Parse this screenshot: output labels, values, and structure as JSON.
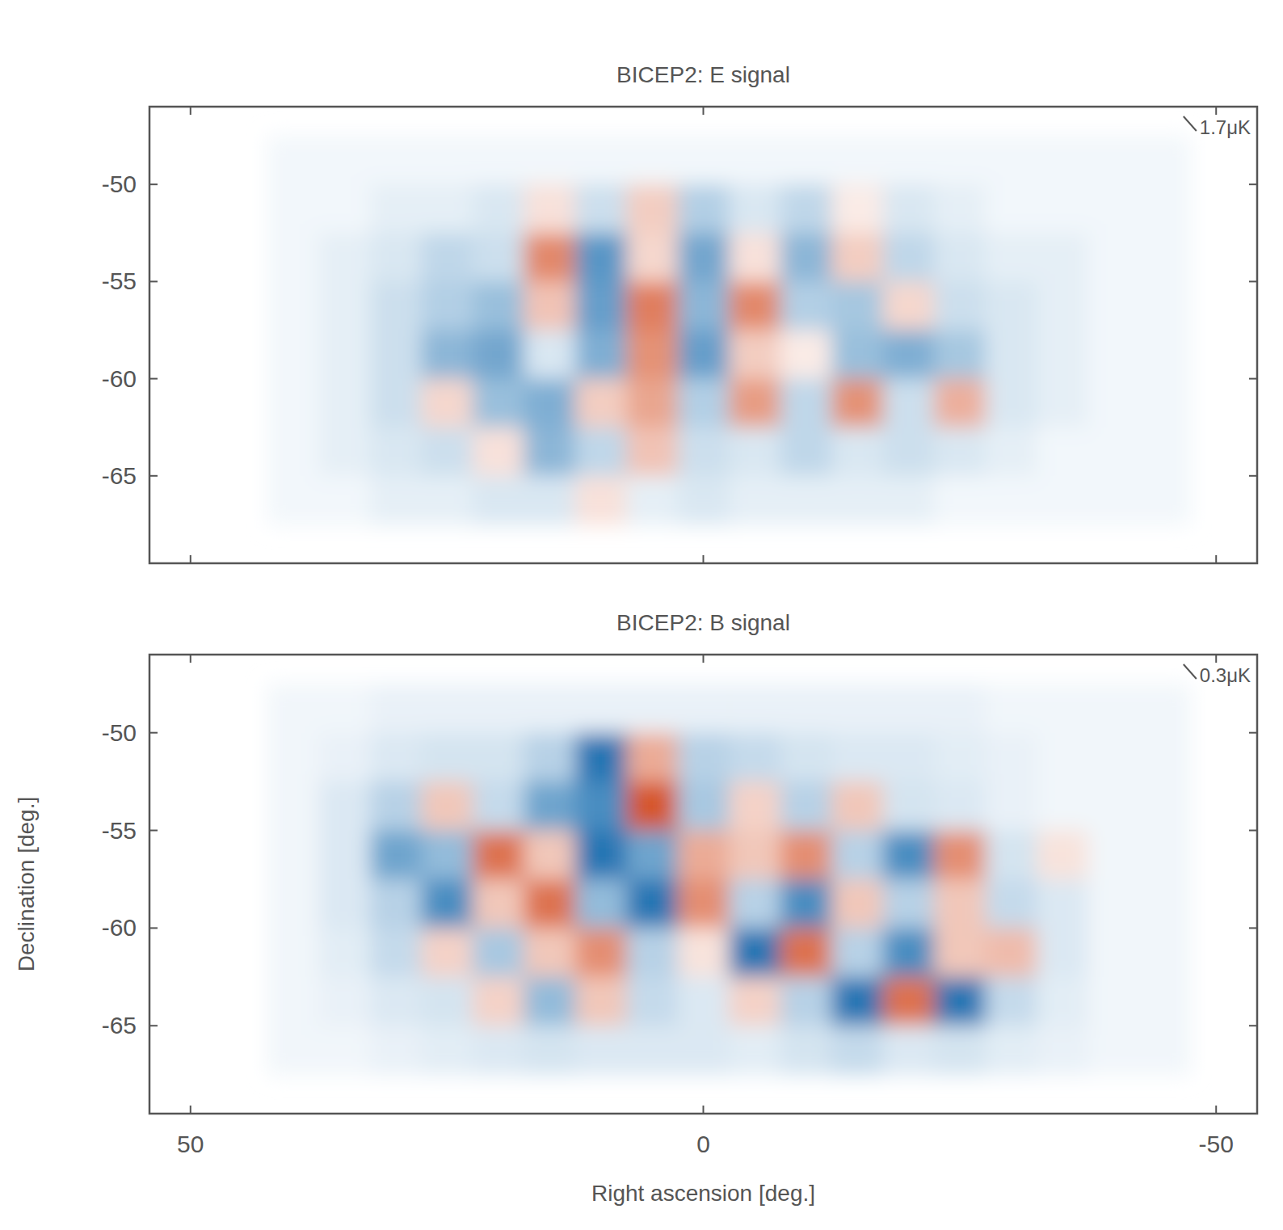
{
  "chart_data": [
    {
      "type": "heatmap",
      "title": "BICEP2: E signal",
      "x": [
        40,
        35,
        30,
        25,
        20,
        15,
        10,
        5,
        0,
        -5,
        -10,
        -15,
        -20,
        -25,
        -30,
        -35,
        -40,
        -45
      ],
      "y": [
        -48.75,
        -51.25,
        -53.75,
        -56.25,
        -58.75,
        -61.25,
        -63.75,
        -66.25
      ],
      "z": [
        [
          -0.1,
          -0.1,
          -0.1,
          -0.1,
          -0.1,
          -0.1,
          -0.1,
          -0.1,
          -0.1,
          -0.1,
          -0.1,
          -0.1,
          -0.1,
          -0.1,
          -0.1,
          -0.1,
          -0.1,
          -0.1
        ],
        [
          -0.1,
          -0.1,
          -0.2,
          -0.2,
          -0.3,
          0.3,
          -0.4,
          0.5,
          -0.6,
          -0.3,
          -0.5,
          0.2,
          -0.3,
          -0.2,
          -0.1,
          -0.1,
          -0.1,
          -0.1
        ],
        [
          -0.1,
          -0.2,
          -0.3,
          -0.5,
          -0.4,
          1.2,
          -1.3,
          0.4,
          -1.1,
          0.3,
          -0.9,
          0.5,
          -0.5,
          -0.3,
          -0.2,
          -0.2,
          -0.1,
          -0.1
        ],
        [
          -0.1,
          -0.2,
          -0.4,
          -0.6,
          -0.8,
          0.6,
          -1.2,
          1.3,
          -0.9,
          1.2,
          -0.6,
          -0.7,
          0.4,
          -0.4,
          -0.3,
          -0.2,
          -0.1,
          -0.1
        ],
        [
          -0.1,
          -0.2,
          -0.4,
          -0.9,
          -1.1,
          -0.3,
          -1.0,
          1.1,
          -1.2,
          0.5,
          0.2,
          -0.8,
          -1.0,
          -0.7,
          -0.3,
          -0.2,
          -0.1,
          -0.1
        ],
        [
          -0.1,
          -0.2,
          -0.4,
          0.4,
          -0.8,
          -1.0,
          0.5,
          0.9,
          -0.6,
          1.0,
          -0.5,
          1.1,
          -0.4,
          0.8,
          -0.3,
          -0.2,
          -0.1,
          -0.1
        ],
        [
          -0.1,
          -0.2,
          -0.3,
          -0.4,
          0.3,
          -0.9,
          -0.5,
          0.6,
          -0.4,
          -0.3,
          -0.5,
          -0.3,
          -0.4,
          -0.3,
          -0.2,
          -0.1,
          -0.1,
          -0.1
        ],
        [
          -0.1,
          -0.1,
          -0.2,
          -0.2,
          -0.3,
          -0.3,
          0.3,
          -0.2,
          -0.3,
          -0.2,
          -0.2,
          -0.2,
          -0.2,
          -0.1,
          -0.1,
          -0.1,
          -0.1,
          -0.1
        ]
      ],
      "xlim": [
        54,
        -54
      ],
      "ylim": [
        -69.5,
        -46
      ],
      "xticks": [
        50,
        0,
        -50
      ],
      "yticks": [
        -50,
        -55,
        -60,
        -65
      ],
      "tick_labels": "y",
      "scale": {
        "value": 1.7,
        "label": "1.7μK"
      }
    },
    {
      "type": "heatmap",
      "title": "BICEP2: B signal",
      "xlabel": "Right ascension [deg.]",
      "ylabel": "Declination [deg.]",
      "x": [
        40,
        35,
        30,
        25,
        20,
        15,
        10,
        5,
        0,
        -5,
        -10,
        -15,
        -20,
        -25,
        -30,
        -35,
        -40,
        -45
      ],
      "y": [
        -48.75,
        -51.25,
        -53.75,
        -56.25,
        -58.75,
        -61.25,
        -63.75,
        -66.25
      ],
      "z": [
        [
          -0.02,
          -0.02,
          -0.03,
          -0.03,
          -0.03,
          -0.03,
          -0.03,
          -0.03,
          -0.03,
          -0.03,
          -0.03,
          -0.03,
          -0.03,
          -0.03,
          -0.02,
          -0.02,
          -0.02,
          -0.02
        ],
        [
          -0.02,
          -0.03,
          -0.05,
          -0.06,
          -0.06,
          -0.1,
          -0.3,
          0.15,
          -0.1,
          -0.08,
          -0.06,
          -0.05,
          -0.05,
          -0.04,
          -0.03,
          -0.02,
          -0.02,
          -0.02
        ],
        [
          -0.02,
          -0.05,
          -0.1,
          0.1,
          -0.08,
          -0.2,
          -0.25,
          0.35,
          -0.12,
          0.08,
          -0.1,
          0.1,
          -0.06,
          -0.05,
          -0.03,
          -0.02,
          -0.02,
          -0.02
        ],
        [
          -0.02,
          -0.05,
          -0.2,
          -0.15,
          0.25,
          0.1,
          -0.3,
          -0.2,
          0.15,
          0.1,
          0.2,
          -0.1,
          -0.25,
          0.2,
          -0.06,
          0.05,
          -0.02,
          -0.02
        ],
        [
          -0.02,
          -0.05,
          -0.1,
          -0.25,
          0.1,
          0.25,
          -0.15,
          -0.3,
          0.2,
          -0.1,
          -0.25,
          0.1,
          -0.1,
          0.1,
          -0.08,
          -0.05,
          -0.02,
          -0.02
        ],
        [
          -0.02,
          -0.04,
          -0.08,
          0.08,
          -0.12,
          0.1,
          0.2,
          -0.1,
          0.05,
          -0.3,
          0.25,
          -0.1,
          -0.25,
          0.1,
          0.12,
          -0.05,
          -0.02,
          -0.02
        ],
        [
          -0.02,
          -0.03,
          -0.05,
          -0.06,
          0.08,
          -0.15,
          0.1,
          -0.08,
          -0.05,
          0.08,
          -0.1,
          -0.3,
          0.25,
          -0.3,
          -0.08,
          -0.04,
          -0.02,
          -0.02
        ],
        [
          -0.02,
          -0.02,
          -0.03,
          -0.04,
          -0.05,
          -0.06,
          -0.05,
          -0.05,
          -0.05,
          -0.04,
          -0.06,
          -0.08,
          -0.05,
          -0.06,
          -0.04,
          -0.03,
          -0.02,
          -0.02
        ]
      ],
      "xlim": [
        54,
        -54
      ],
      "ylim": [
        -69.5,
        -46
      ],
      "xticks": [
        50,
        0,
        -50
      ],
      "yticks": [
        -50,
        -55,
        -60,
        -65
      ],
      "scale": {
        "value": 0.3,
        "label": "0.3μK"
      }
    }
  ]
}
